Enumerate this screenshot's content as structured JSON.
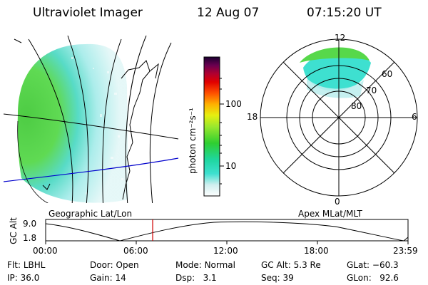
{
  "header": {
    "title": "Ultraviolet Imager",
    "date": "12 Aug 07",
    "time": "07:15:20 UT"
  },
  "left_panel": {
    "caption": "Geographic Lat/Lon"
  },
  "right_panel": {
    "caption": "Apex MLat/MLT",
    "mlt_labels": [
      "12",
      "18",
      "6",
      "0"
    ],
    "mlat_labels": [
      "60",
      "70",
      "80"
    ]
  },
  "colorbar": {
    "unit_label": "photon cm⁻²s⁻¹",
    "tick_labels": [
      "100",
      "10"
    ]
  },
  "gc_alt_strip": {
    "ylabel": "GC Alt",
    "y_ticks": [
      "9.0",
      "1.8"
    ],
    "x_ticks": [
      "00:00",
      "06:00",
      "12:00",
      "18:00",
      "23:59"
    ],
    "current_time_marker": "07:15"
  },
  "info": [
    {
      "label": "Flt:",
      "value": "LBHL"
    },
    {
      "label": "IP:",
      "value": "36.0"
    },
    {
      "label": "Door:",
      "value": "Open"
    },
    {
      "label": "Gain:",
      "value": "14"
    },
    {
      "label": "Mode:",
      "value": "Normal"
    },
    {
      "label": "Dsp:",
      "value": "3.1"
    },
    {
      "label": "GC Alt:",
      "value": "5.3 Re"
    },
    {
      "label": "Seq:",
      "value": "39"
    },
    {
      "label": "GLat:",
      "value": "−60.3"
    },
    {
      "label": "GLon:",
      "value": "92.6"
    }
  ],
  "colors": {
    "aurora_green": "#3fd23a",
    "aurora_cyan": "#3ee0d0",
    "pale_cyan": "#bfeeee",
    "time_marker": "#d00000",
    "meridian_blue": "#0000cc"
  }
}
